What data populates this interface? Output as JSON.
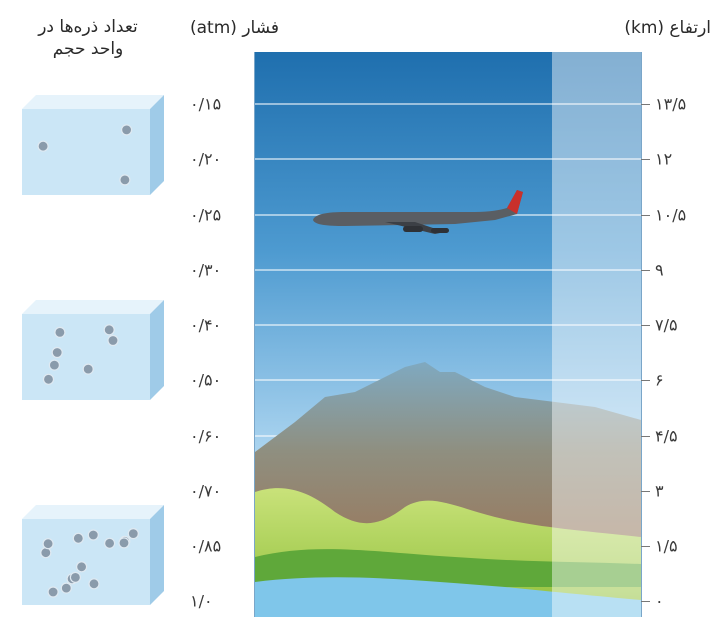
{
  "headers": {
    "altitude": "ارتفاع (km)",
    "pressure": "فشار (atm)",
    "particles_line1": "تعداد ذره‌ها در",
    "particles_line2": "واحد حجم"
  },
  "pressure_labels": [
    "۰/۱۵",
    "۰/۲۰",
    "۰/۲۵",
    "۰/۳۰",
    "۰/۴۰",
    "۰/۵۰",
    "۰/۶۰",
    "۰/۷۰",
    "۰/۸۵",
    "۱/۰"
  ],
  "altitude_labels": [
    "۱۳/۵",
    "۱۲",
    "۱۰/۵",
    "۹",
    "۷/۵",
    "۶",
    "۴/۵",
    "۳",
    "۱/۵",
    "۰"
  ],
  "particle_boxes": [
    {
      "position": "top",
      "particles": 3
    },
    {
      "position": "middle",
      "particles": 7
    },
    {
      "position": "bottom",
      "particles": 14
    }
  ],
  "colors": {
    "sky_top": "#1f6fae",
    "sky_bottom": "#bfe0f4",
    "mountain": "#a07050",
    "hill": "#b9d86a",
    "airplane_tail": "#c9302c"
  }
}
